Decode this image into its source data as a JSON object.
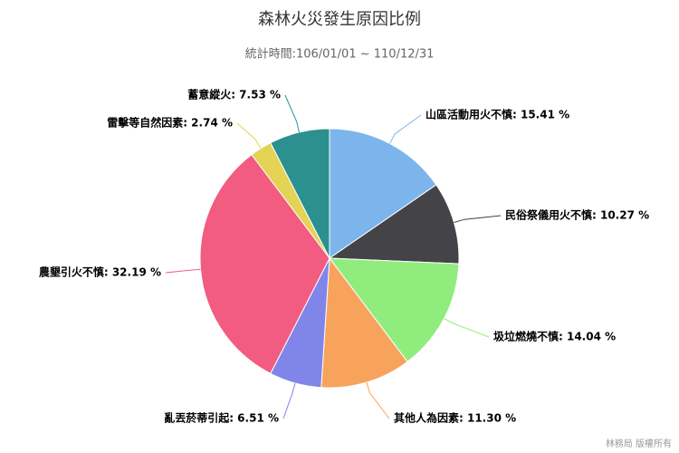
{
  "chart_data": {
    "type": "pie",
    "title": "森林火災發生原因比例",
    "subtitle": "統計時間:106/01/01 ~ 110/12/31",
    "credit": "林務局 版權所有",
    "values": [
      15.41,
      10.27,
      14.04,
      11.3,
      6.51,
      32.19,
      2.74,
      7.53
    ],
    "value_labels": [
      "山區活動用火不慎: 15.41 %",
      "民俗祭儀用火不慎: 10.27 %",
      "圾垃燃燒不慎: 14.04 %",
      "其他人為因素: 11.30 %",
      "亂丟菸蒂引起: 6.51 %",
      "農墾引火不慎: 32.19 %",
      "雷擊等自然因素: 2.74 %",
      "蓄意縱火: 7.53 %"
    ],
    "colors": [
      "#7cb5ec",
      "#434348",
      "#90ed7d",
      "#f7a35c",
      "#8085e9",
      "#f15c80",
      "#e4d354",
      "#2b908f"
    ]
  }
}
